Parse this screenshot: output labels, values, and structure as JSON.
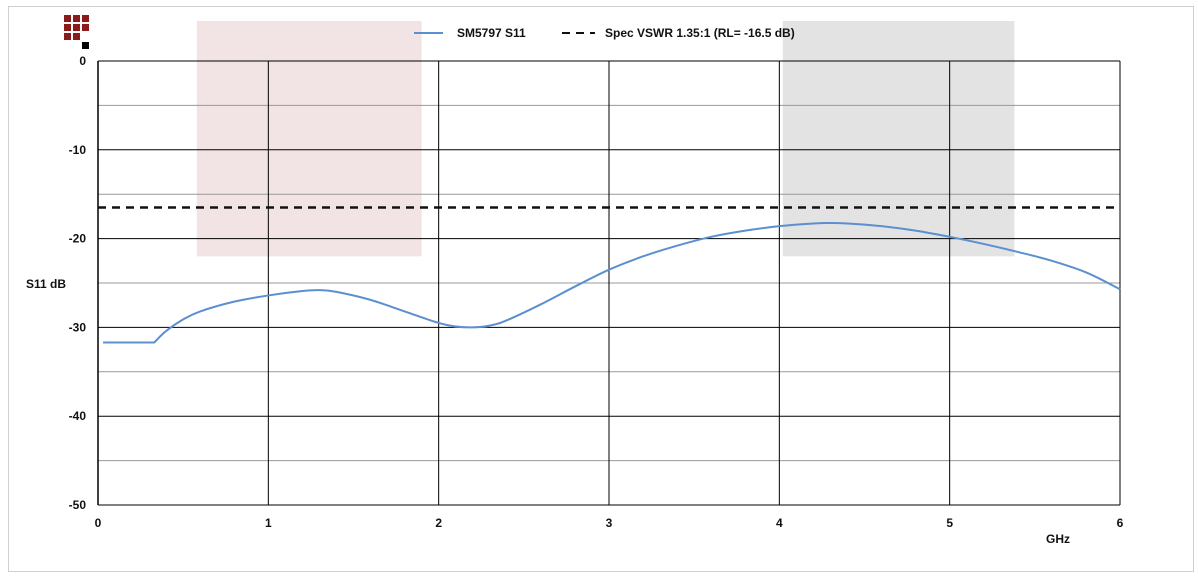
{
  "colors": {
    "background": "#ffffff",
    "major_grid": "#000000",
    "minor_grid": "#999999",
    "band_left": "#f2e4e4",
    "band_right": "#e3e3e3",
    "s11_line": "#5b8fcf",
    "spec_line": "#111111",
    "logo_red": "#8b1a1a",
    "logo_black": "#000000"
  },
  "logo": {
    "icon": "red-black-square-grid-logo-icon"
  },
  "chart_data": {
    "type": "line",
    "xlabel": "GHz",
    "ylabel": "S11 dB",
    "xlim": [
      0,
      6
    ],
    "ylim": [
      -50,
      0
    ],
    "x_ticks": [
      0,
      1,
      2,
      3,
      4,
      5,
      6
    ],
    "y_ticks": [
      0,
      -10,
      -20,
      -30,
      -40,
      -50
    ],
    "minor_y_ticks": [
      -5,
      -15,
      -25,
      -35,
      -45
    ],
    "grid": true,
    "legend_position": "top-center",
    "shaded_bands": [
      {
        "x": [
          0.58,
          1.9
        ],
        "y": [
          -22,
          0
        ],
        "color": "band_left"
      },
      {
        "x": [
          4.02,
          5.38
        ],
        "y": [
          -22,
          0
        ],
        "color": "band_right"
      }
    ],
    "series": [
      {
        "name": "SM5797 S11",
        "style": "solid",
        "x": [
          0.03,
          0.33,
          0.4,
          0.5,
          0.6,
          0.8,
          1.0,
          1.2,
          1.3,
          1.4,
          1.6,
          1.8,
          2.0,
          2.1,
          2.2,
          2.3,
          2.4,
          2.6,
          2.8,
          3.0,
          3.2,
          3.4,
          3.6,
          3.8,
          4.0,
          4.2,
          4.3,
          4.4,
          4.6,
          4.8,
          5.0,
          5.2,
          5.4,
          5.6,
          5.8,
          6.0
        ],
        "y": [
          -31.7,
          -31.7,
          -30.4,
          -29.1,
          -28.2,
          -27.1,
          -26.4,
          -25.9,
          -25.8,
          -26.0,
          -26.9,
          -28.2,
          -29.5,
          -29.9,
          -30.0,
          -29.8,
          -29.2,
          -27.4,
          -25.4,
          -23.5,
          -22.0,
          -20.8,
          -19.8,
          -19.1,
          -18.6,
          -18.3,
          -18.25,
          -18.3,
          -18.6,
          -19.1,
          -19.8,
          -20.6,
          -21.5,
          -22.5,
          -23.8,
          -25.7
        ]
      },
      {
        "name": "Spec VSWR 1.35:1 (RL= -16.5 dB)",
        "style": "dashed",
        "x": [
          0,
          6
        ],
        "y": [
          -16.5,
          -16.5
        ]
      }
    ]
  }
}
